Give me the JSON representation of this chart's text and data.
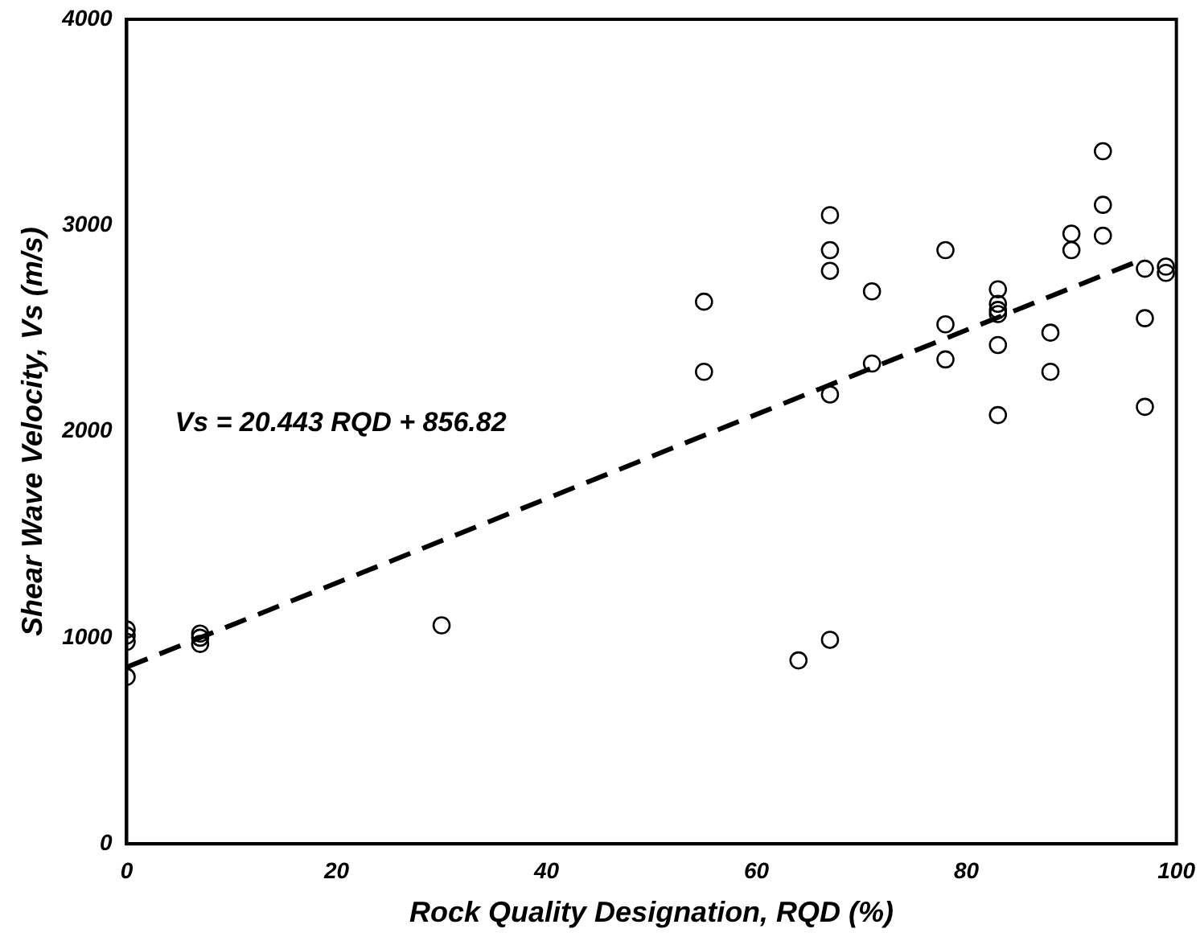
{
  "chart_data": {
    "type": "scatter",
    "xlabel": "Rock Quality Designation, RQD (%)",
    "ylabel": "Shear Wave Velocity, Vs (m/s)",
    "xlim": [
      0,
      100
    ],
    "xticks": [
      0,
      20,
      40,
      60,
      80,
      100
    ],
    "ylim": [
      0,
      4000
    ],
    "yticks": [
      0,
      1000,
      2000,
      3000,
      4000
    ],
    "grid": false,
    "legend": false,
    "marker": "circle",
    "annotations": [
      "Vs = 20.443 RQD + 856.82"
    ],
    "series": [
      {
        "color": "#000000",
        "x": [
          0,
          0,
          0,
          0,
          7,
          7,
          7,
          30,
          55,
          55,
          64,
          67,
          67,
          67,
          67,
          67,
          71,
          71,
          78,
          78,
          78,
          83,
          83,
          83,
          83,
          83,
          83,
          88,
          88,
          90,
          90,
          93,
          93,
          93,
          97,
          97,
          97,
          99,
          99
        ],
        "values": [
          1040,
          1010,
          980,
          810,
          1020,
          1000,
          970,
          1060,
          2630,
          2290,
          890,
          990,
          3050,
          2880,
          2780,
          2180,
          2680,
          2330,
          2880,
          2520,
          2350,
          2690,
          2620,
          2590,
          2570,
          2420,
          2080,
          2480,
          2290,
          2960,
          2880,
          3360,
          3100,
          2950,
          2790,
          2550,
          2120,
          2800,
          2770
        ]
      },
      {
        "type": "line",
        "color": "#000000",
        "line_style": "dashed",
        "marker": "none",
        "x": [
          0,
          97
        ],
        "values": [
          857,
          2840
        ]
      }
    ]
  }
}
